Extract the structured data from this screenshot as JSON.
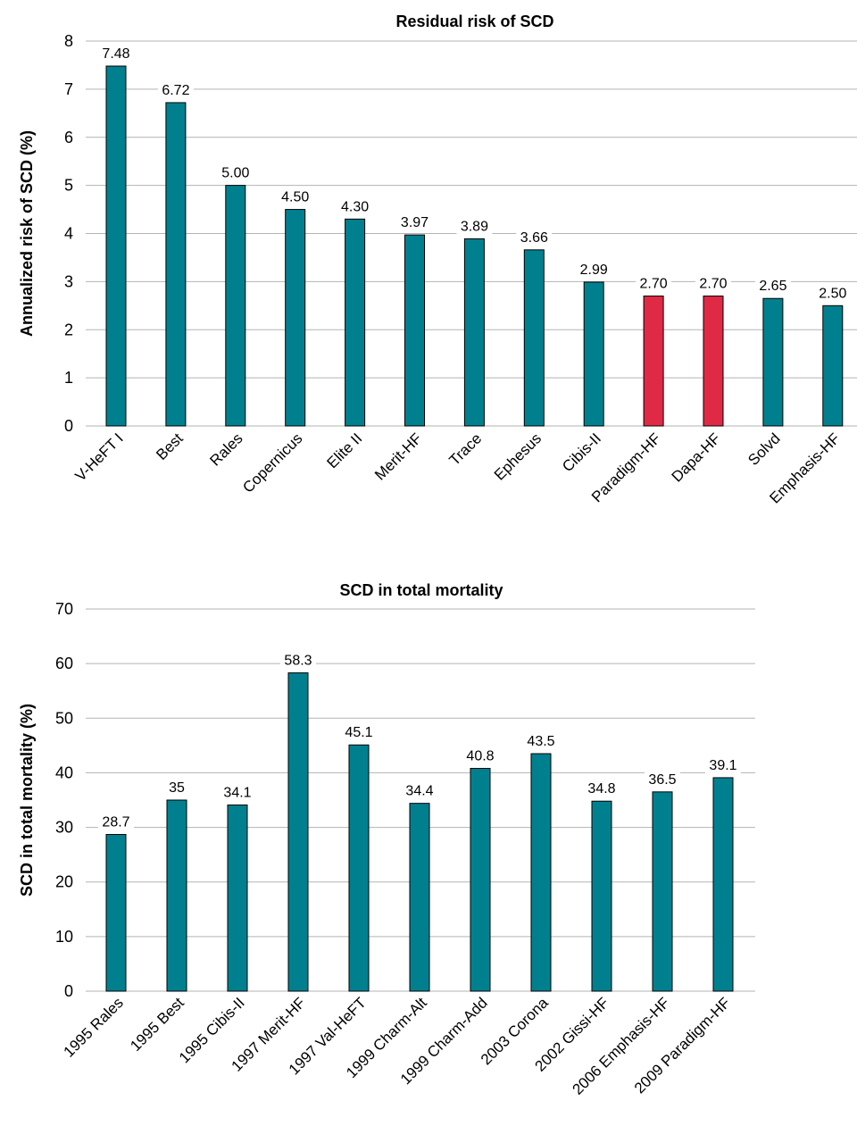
{
  "colors": {
    "bar": "#00808f",
    "highlight": "#e02a45",
    "grid": "#b3b3b3"
  },
  "chart_data": [
    {
      "type": "bar",
      "title": "Residual risk of SCD",
      "xlabel": "",
      "ylabel": "Annualized risk of SCD (%)",
      "ylim": [
        0,
        8
      ],
      "yticks": [
        0,
        1,
        2,
        3,
        4,
        5,
        6,
        7,
        8
      ],
      "grid": true,
      "categories": [
        "V-HeFT I",
        "Best",
        "Rales",
        "Copernicus",
        "Elite II",
        "Merit-HF",
        "Trace",
        "Ephesus",
        "Cibis-II",
        "Paradigm-HF",
        "Dapa-HF",
        "Solvd",
        "Emphasis-HF"
      ],
      "values": [
        7.48,
        6.72,
        5.0,
        4.5,
        4.3,
        3.97,
        3.89,
        3.66,
        2.99,
        2.7,
        2.7,
        2.65,
        2.5
      ],
      "labels": [
        "7.48",
        "6.72",
        "5.00",
        "4.50",
        "4.30",
        "3.97",
        "3.89",
        "3.66",
        "2.99",
        "2.70",
        "2.70",
        "2.65",
        "2.50"
      ],
      "highlighted": [
        "Paradigm-HF",
        "Dapa-HF"
      ]
    },
    {
      "type": "bar",
      "title": "SCD in total mortality",
      "xlabel": "",
      "ylabel": "SCD in total mortality (%)",
      "ylim": [
        0,
        70
      ],
      "yticks": [
        0,
        10,
        20,
        30,
        40,
        50,
        60,
        70
      ],
      "grid": true,
      "categories": [
        "1995 Rales",
        "1995 Best",
        "1995 Cibis-II",
        "1997 Merit-HF",
        "1997 Val-HeFT",
        "1999 Charm-Alt",
        "1999 Charm-Add",
        "2003 Corona",
        "2002 Gissi-HF",
        "2006 Emphasis-HF",
        "2009 Paradigm-HF"
      ],
      "values": [
        28.7,
        35,
        34.1,
        58.3,
        45.1,
        34.4,
        40.8,
        43.5,
        34.8,
        36.5,
        39.1
      ],
      "labels": [
        "28.7",
        "35",
        "34.1",
        "58.3",
        "45.1",
        "34.4",
        "40.8",
        "43.5",
        "34.8",
        "36.5",
        "39.1"
      ],
      "highlighted": []
    }
  ]
}
